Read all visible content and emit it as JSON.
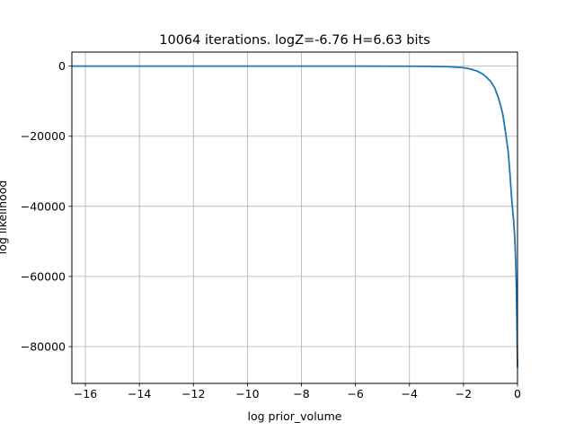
{
  "chart_data": {
    "type": "line",
    "title": "10064 iterations. logZ=-6.76 H=6.63 bits",
    "xlabel": "log prior_volume",
    "ylabel": "log likelihood",
    "xlim": [
      -16.5,
      0
    ],
    "ylim": [
      -90500,
      4000
    ],
    "xticks": [
      -16,
      -14,
      -12,
      -10,
      -8,
      -6,
      -4,
      -2,
      0
    ],
    "xtick_labels": [
      "−16",
      "−14",
      "−12",
      "−10",
      "−8",
      "−6",
      "−4",
      "−2",
      "0"
    ],
    "yticks": [
      0,
      -20000,
      -40000,
      -60000,
      -80000
    ],
    "ytick_labels": [
      "0",
      "−20000",
      "−40000",
      "−60000",
      "−80000"
    ],
    "grid": true,
    "line_color": "#1f77b4",
    "series": [
      {
        "x": [
          -16.5,
          -14,
          -12,
          -10,
          -8,
          -6,
          -4,
          -3,
          -2.5,
          -2,
          -1.7,
          -1.5,
          -1.3,
          -1.2,
          -1.0,
          -0.85,
          -0.7,
          -0.55,
          -0.45,
          -0.35,
          -0.3,
          -0.25,
          -0.2,
          -0.15,
          -0.1,
          -0.07,
          -0.04,
          -0.02,
          0
        ],
        "y": [
          0,
          0,
          0,
          0,
          0,
          0,
          -30,
          -100,
          -200,
          -450,
          -900,
          -1400,
          -2200,
          -2800,
          -4300,
          -6100,
          -9200,
          -13500,
          -18500,
          -24000,
          -28500,
          -34000,
          -39500,
          -43500,
          -49000,
          -55000,
          -64000,
          -74000,
          -86000
        ]
      }
    ]
  }
}
